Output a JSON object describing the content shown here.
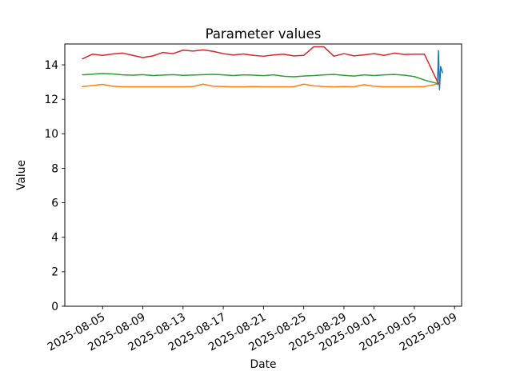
{
  "chart_data": {
    "type": "line",
    "title": "Parameter values",
    "xlabel": "Date",
    "ylabel": "Value",
    "grid": false,
    "legend": "none",
    "x_axis": {
      "epoch": "2025-08-01",
      "lim_days": [
        0.24,
        39.7
      ],
      "tick_days": [
        4,
        8,
        12,
        16,
        20,
        24,
        28,
        31,
        35,
        39
      ],
      "tick_labels": [
        "2025-08-05",
        "2025-08-09",
        "2025-08-13",
        "2025-08-17",
        "2025-08-21",
        "2025-08-25",
        "2025-08-29",
        "2025-09-01",
        "2025-09-05",
        "2025-09-09"
      ],
      "tick_rotation_deg": 30
    },
    "y_axis": {
      "lim": [
        0,
        15.21
      ],
      "ticks": [
        0,
        2,
        4,
        6,
        8,
        10,
        12,
        14
      ],
      "tick_labels": [
        "0",
        "2",
        "4",
        "6",
        "8",
        "10",
        "12",
        "14"
      ]
    },
    "series": [
      {
        "id": "series-blue",
        "color": "#1f77b4",
        "days": [
          37.3,
          37.4,
          37.5,
          37.62,
          37.8
        ],
        "values": [
          12.85,
          14.82,
          12.56,
          13.9,
          13.55
        ]
      },
      {
        "id": "series-orange",
        "color": "#ff7f0e",
        "days": [
          2,
          3,
          4,
          5,
          6,
          7,
          8,
          9,
          10,
          11,
          12,
          13,
          14,
          15,
          16,
          17,
          18,
          19,
          20,
          21,
          22,
          23,
          24,
          25,
          26,
          27,
          28,
          29,
          30,
          31,
          32,
          33,
          34,
          35,
          36,
          37.4
        ],
        "values": [
          12.74,
          12.8,
          12.87,
          12.76,
          12.73,
          12.73,
          12.73,
          12.73,
          12.73,
          12.73,
          12.73,
          12.74,
          12.88,
          12.76,
          12.74,
          12.73,
          12.73,
          12.74,
          12.73,
          12.73,
          12.73,
          12.73,
          12.88,
          12.78,
          12.74,
          12.73,
          12.74,
          12.73,
          12.85,
          12.76,
          12.73,
          12.73,
          12.73,
          12.73,
          12.74,
          12.9
        ]
      },
      {
        "id": "series-green",
        "color": "#2ca02c",
        "days": [
          2,
          3,
          4,
          5,
          6,
          7,
          8,
          9,
          10,
          11,
          12,
          13,
          14,
          15,
          16,
          17,
          18,
          19,
          20,
          21,
          22,
          23,
          24,
          25,
          26,
          27,
          28,
          29,
          30,
          31,
          32,
          33,
          34,
          35,
          36,
          37.4
        ],
        "values": [
          13.42,
          13.46,
          13.5,
          13.47,
          13.42,
          13.4,
          13.43,
          13.38,
          13.41,
          13.43,
          13.39,
          13.41,
          13.43,
          13.45,
          13.42,
          13.38,
          13.42,
          13.4,
          13.37,
          13.42,
          13.34,
          13.31,
          13.35,
          13.38,
          13.42,
          13.44,
          13.39,
          13.35,
          13.42,
          13.38,
          13.42,
          13.44,
          13.4,
          13.32,
          13.12,
          12.9
        ]
      },
      {
        "id": "series-red",
        "color": "#d62728",
        "days": [
          2,
          3,
          4,
          5,
          6,
          7,
          8,
          9,
          10,
          11,
          12,
          13,
          14,
          15,
          16,
          17,
          18,
          19,
          20,
          21,
          22,
          23,
          24,
          25,
          26,
          27,
          28,
          29,
          30,
          31,
          32,
          33,
          34,
          35,
          36,
          37.4
        ],
        "values": [
          14.35,
          14.62,
          14.55,
          14.63,
          14.68,
          14.55,
          14.42,
          14.52,
          14.72,
          14.65,
          14.85,
          14.8,
          14.87,
          14.78,
          14.65,
          14.57,
          14.63,
          14.55,
          14.5,
          14.57,
          14.62,
          14.52,
          14.55,
          15.05,
          15.05,
          14.5,
          14.65,
          14.52,
          14.58,
          14.65,
          14.55,
          14.68,
          14.6,
          14.62,
          14.62,
          12.9
        ]
      }
    ]
  }
}
